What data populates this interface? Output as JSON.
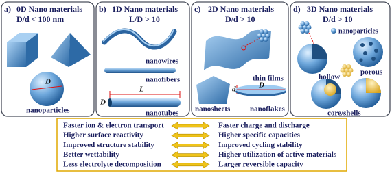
{
  "panels": [
    {
      "label": "a)",
      "title": "0D Nano materials",
      "subtitle": "D/d < 100 nm",
      "labels": [
        "D",
        "nanoparticles"
      ]
    },
    {
      "label": "b)",
      "title": "1D Nano materials",
      "subtitle": "L/D > 10",
      "labels": [
        "nanowires",
        "nanofibers",
        "L",
        "D",
        "nanotubes"
      ]
    },
    {
      "label": "c)",
      "title": "2D Nano materials",
      "subtitle": "D/d > 10",
      "labels": [
        "thin films",
        "d",
        "D",
        "nanosheets",
        "nanoflakes"
      ]
    },
    {
      "label": "d)",
      "title": "3D Nano materials",
      "subtitle": "D/d > 10",
      "labels": [
        "nanoparticles",
        "hollow",
        "porous",
        "core/shells"
      ]
    }
  ],
  "comparison": {
    "rows": [
      {
        "left": "Faster ion & electron transport",
        "right": "Faster charge and discharge"
      },
      {
        "left": "Higher surface reactivity",
        "right": "Higher specific capacities"
      },
      {
        "left": "Improved structure stability",
        "right": "Improved cycling stability"
      },
      {
        "left": "Better wettability",
        "right": "Higher utilization of active materials"
      },
      {
        "left": "Less electrolyte decomposition",
        "right": "Larger reversible capacity"
      }
    ]
  }
}
